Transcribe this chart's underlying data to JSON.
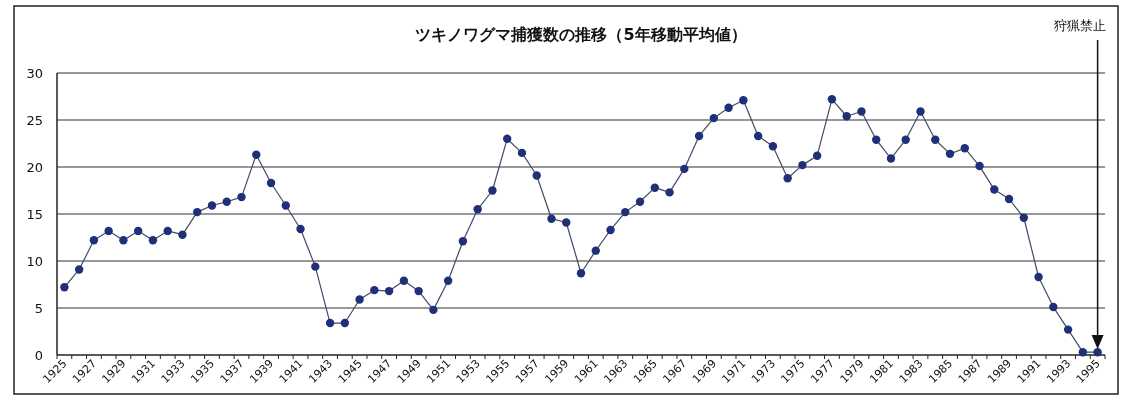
{
  "chart_data": {
    "type": "line",
    "title": "ツキノワグマ捕獲数の推移（5年移動平均値）",
    "categories": [
      "1925",
      null,
      "1927",
      null,
      "1929",
      null,
      "1931",
      null,
      "1933",
      null,
      "1935",
      null,
      "1937",
      null,
      "1939",
      null,
      "1941",
      null,
      "1943",
      null,
      "1945",
      null,
      "1947",
      null,
      "1949",
      null,
      "1951",
      null,
      "1953",
      null,
      "1955",
      null,
      "1957",
      null,
      "1959",
      null,
      "1961",
      null,
      "1963",
      null,
      "1965",
      null,
      "1967",
      null,
      "1969",
      null,
      "1971",
      null,
      "1973",
      null,
      "1975",
      null,
      "1977",
      null,
      "1979",
      null,
      "1981",
      null,
      "1983",
      null,
      "1985",
      null,
      "1987",
      null,
      "1989",
      null,
      "1991",
      null,
      "1993",
      null,
      "1995"
    ],
    "values": [
      7.2,
      9.1,
      12.2,
      13.2,
      12.2,
      13.2,
      12.2,
      13.2,
      12.8,
      15.2,
      15.9,
      16.3,
      16.8,
      21.3,
      18.3,
      15.9,
      13.4,
      9.4,
      3.4,
      3.4,
      5.9,
      6.9,
      6.8,
      7.9,
      6.8,
      4.8,
      7.9,
      12.1,
      15.5,
      17.5,
      23.0,
      21.5,
      19.1,
      14.5,
      14.1,
      8.7,
      11.1,
      13.3,
      15.2,
      16.3,
      17.8,
      17.3,
      19.8,
      23.3,
      25.2,
      26.3,
      27.1,
      23.3,
      22.2,
      18.8,
      20.2,
      21.2,
      27.2,
      25.4,
      25.9,
      22.9,
      20.9,
      22.9,
      25.9,
      22.9,
      21.4,
      22.0,
      20.1,
      17.6,
      16.6,
      14.6,
      8.3,
      5.1,
      2.7,
      0.3,
      0.3
    ],
    "color": "#1f2f7a",
    "marker": "circle",
    "ylim": [
      0,
      30
    ],
    "yticks": [
      0,
      5,
      10,
      15,
      20,
      25,
      30
    ],
    "grid": "y",
    "ref_lines": [
      {
        "axis": "x",
        "value": "1995",
        "label": "狩猟禁止",
        "color": "#111111"
      }
    ]
  }
}
